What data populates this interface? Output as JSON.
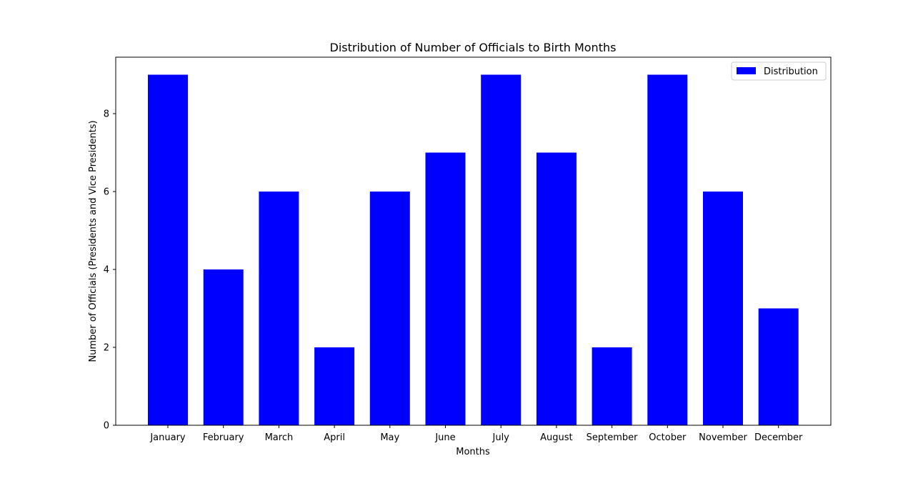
{
  "chart_data": {
    "type": "bar",
    "title": "Distribution of Number of Officials to Birth Months",
    "xlabel": "Months",
    "ylabel": "Number of Officials (Presidents and Vice Presidents)",
    "categories": [
      "January",
      "February",
      "March",
      "April",
      "May",
      "June",
      "July",
      "August",
      "September",
      "October",
      "November",
      "December"
    ],
    "series": [
      {
        "name": "Distribution",
        "values": [
          9,
          4,
          6,
          2,
          6,
          7,
          9,
          7,
          2,
          9,
          6,
          3
        ],
        "color": "#0000ff"
      }
    ],
    "ylim": [
      0,
      9.45
    ],
    "yticks": [
      "0",
      "2",
      "4",
      "6",
      "8"
    ],
    "grid": false,
    "legend_position": "top-right"
  }
}
